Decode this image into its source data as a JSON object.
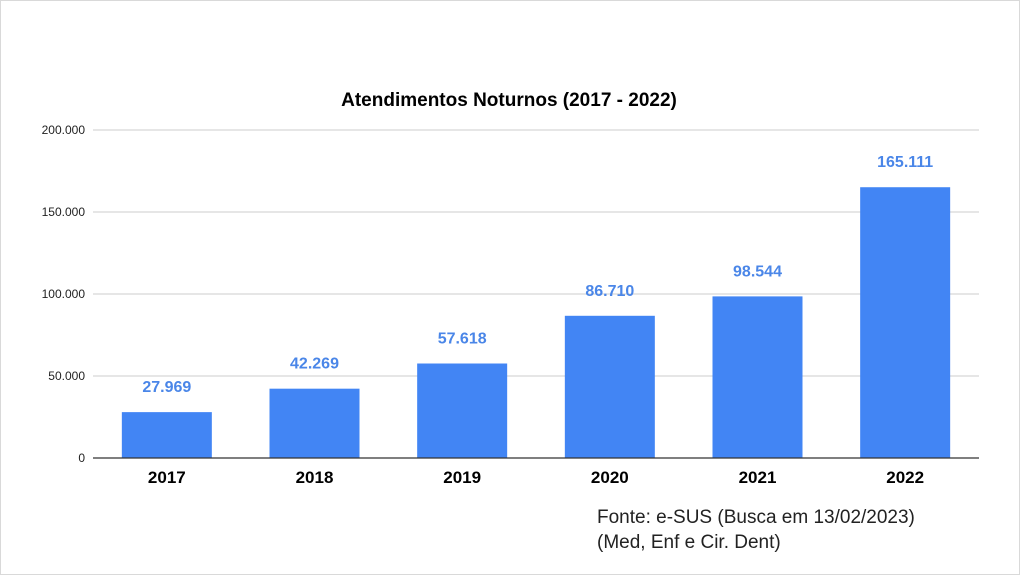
{
  "chart_data": {
    "type": "bar",
    "title": "Atendimentos Noturnos (2017 - 2022)",
    "xlabel": "",
    "ylabel": "",
    "categories": [
      "2017",
      "2018",
      "2019",
      "2020",
      "2021",
      "2022"
    ],
    "values": [
      27969,
      42269,
      57618,
      86710,
      98544,
      165111
    ],
    "data_labels": [
      "27.969",
      "42.269",
      "57.618",
      "86.710",
      "98.544",
      "165.111"
    ],
    "ylim": [
      0,
      200000
    ],
    "yticks": [
      0,
      50000,
      100000,
      150000,
      200000
    ],
    "ytick_labels": [
      "0",
      "50.000",
      "100.000",
      "150.000",
      "200.000"
    ],
    "grid": true,
    "legend": "none"
  },
  "colors": {
    "bar": "#4285f4",
    "data_label": "#4a86e8",
    "grid": "#cccccc",
    "axis": "#333333",
    "title": "#000000",
    "tick_text": "#222222"
  },
  "source": {
    "line1": "Fonte: e-SUS (Busca em 13/02/2023)",
    "line2": "(Med, Enf e Cir. Dent)"
  }
}
